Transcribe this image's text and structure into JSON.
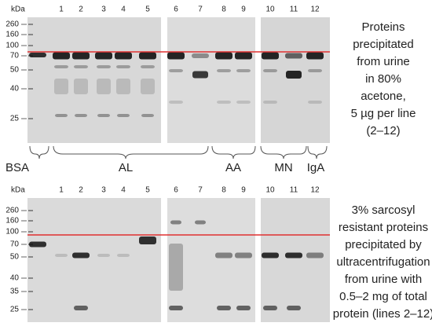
{
  "top_panel": {
    "kda_label": "kDa",
    "mw_markers": [
      "260",
      "160",
      "100",
      "70",
      "50",
      "40",
      "25"
    ],
    "lane_numbers": [
      "1",
      "2",
      "3",
      "4",
      "5",
      "6",
      "7",
      "8",
      "9",
      "10",
      "11",
      "12"
    ],
    "caption": [
      "Proteins",
      "precipitated",
      "from urine",
      "in 80%",
      "acetone,",
      "5 µg per line",
      "(2–12)"
    ]
  },
  "groups": [
    "BSA",
    "AL",
    "AA",
    "MN",
    "IgA"
  ],
  "bottom_panel": {
    "kda_label": "kDa",
    "mw_markers": [
      "260",
      "160",
      "100",
      "70",
      "50",
      "40",
      "35",
      "25"
    ],
    "lane_numbers": [
      "1",
      "2",
      "3",
      "4",
      "5",
      "6",
      "7",
      "8",
      "9",
      "10",
      "11",
      "12"
    ],
    "caption": [
      "3% sarcosyl",
      "resistant proteins",
      "precipitated by",
      "ultracentrifugation",
      "from urine with",
      "0.5–2 mg of total",
      "protein (lines 2–12)"
    ]
  }
}
